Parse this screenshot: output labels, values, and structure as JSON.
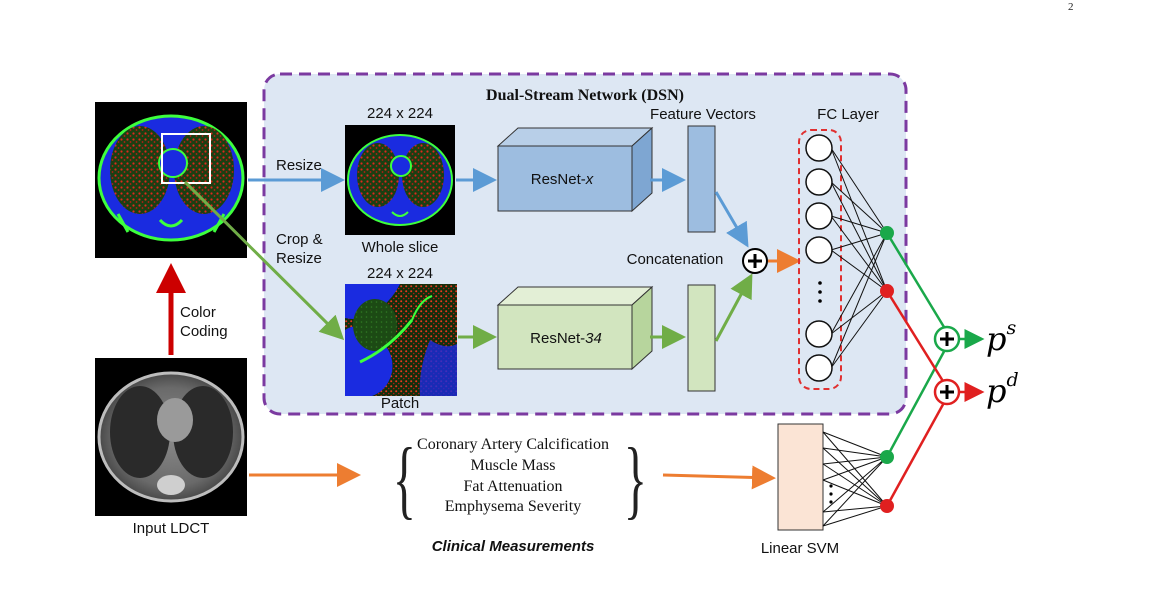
{
  "page_number": "2",
  "dsn": {
    "title": "Dual-Stream Network (DSN)"
  },
  "labels": {
    "size_top": "224 x 224",
    "size_bottom": "224 x 224",
    "whole_slice": "Whole slice",
    "patch": "Patch",
    "resize": "Resize",
    "crop_line1": "Crop &",
    "crop_line2": "Resize",
    "color_line1": "Color",
    "color_line2": "Coding",
    "feature_vectors": "Feature Vectors",
    "fc_layer": "FC Layer",
    "concatenation": "Concatenation",
    "input_ldct": "Input LDCT",
    "linear_svm": "Linear SVM",
    "clinical_title": "Clinical Measurements"
  },
  "networks": {
    "top_prefix": "ResNet-",
    "top_suffix": "x",
    "bottom_prefix": "ResNet-",
    "bottom_suffix": "34"
  },
  "clinical_items": [
    "Coronary Artery Calcification",
    "Muscle Mass",
    "Fat Attenuation",
    "Emphysema Severity"
  ],
  "outputs": {
    "ps_base": "p",
    "ps_sup": "s",
    "pd_base": "p",
    "pd_sup": "d"
  },
  "colors": {
    "dsn_border": "#7b3aa0",
    "dsn_fill": "#dde7f3",
    "blue_stream": "#5b9bd5",
    "green_stream": "#70ad47",
    "orange": "#ed7d31",
    "red": "#cc0000",
    "node_green": "#1aa84a",
    "node_red": "#e02020",
    "clinical_title": "#c55a11",
    "svm_fill": "#fbe4d5"
  }
}
